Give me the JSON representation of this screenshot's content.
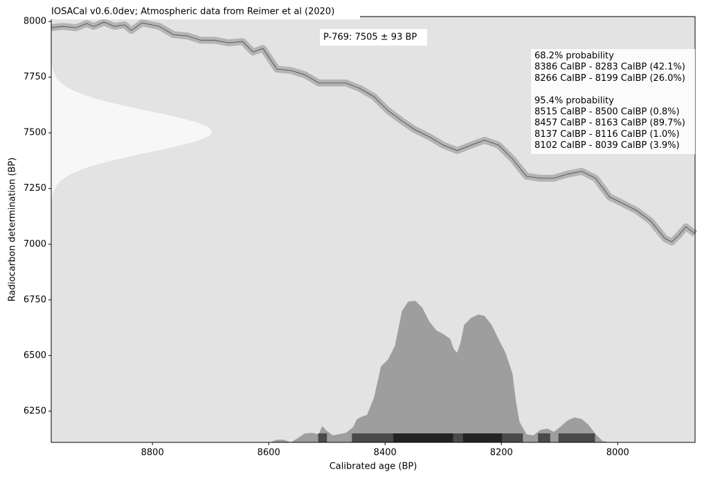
{
  "chart_data": {
    "type": "calibration",
    "title": "IOSACal v0.6.0dev; Atmospheric data from Reimer et al (2020)",
    "x_label": "Calibrated age (BP)",
    "y_label": "Radiocarbon determination (BP)",
    "xlim": [
      8974,
      7867
    ],
    "ylim": [
      6110,
      8022
    ],
    "xticks": [
      8800,
      8600,
      8400,
      8200,
      8000
    ],
    "yticks": [
      6250,
      6500,
      6750,
      7000,
      7250,
      7500,
      7750,
      8000
    ],
    "background": "#e3e3e3",
    "date": {
      "label": "P-769: 7505 ± 93 BP",
      "mean": 7505,
      "sd": 93,
      "color": "#f7f7f7"
    },
    "curve": {
      "color": "#444444",
      "band_color": "#b4b4b4",
      "x": [
        8974,
        8955,
        8931,
        8913,
        8901,
        8883,
        8865,
        8848,
        8836,
        8818,
        8788,
        8764,
        8740,
        8717,
        8693,
        8669,
        8645,
        8627,
        8610,
        8586,
        8562,
        8538,
        8514,
        8491,
        8467,
        8443,
        8419,
        8395,
        8371,
        8348,
        8324,
        8300,
        8276,
        8252,
        8229,
        8205,
        8181,
        8157,
        8133,
        8110,
        8086,
        8062,
        8038,
        8014,
        7990,
        7967,
        7943,
        7919,
        7907,
        7895,
        7883,
        7867
      ],
      "y": [
        7972,
        7978,
        7972,
        7991,
        7978,
        7997,
        7978,
        7985,
        7960,
        7994,
        7978,
        7941,
        7935,
        7916,
        7916,
        7904,
        7910,
        7863,
        7879,
        7786,
        7780,
        7761,
        7724,
        7724,
        7724,
        7699,
        7662,
        7600,
        7553,
        7513,
        7482,
        7445,
        7420,
        7445,
        7467,
        7445,
        7383,
        7305,
        7296,
        7296,
        7315,
        7327,
        7296,
        7212,
        7181,
        7150,
        7103,
        7026,
        7010,
        7041,
        7078,
        7047
      ]
    },
    "density": {
      "color": "#9e9e9e",
      "x": [
        8598,
        8586,
        8574,
        8562,
        8550,
        8538,
        8526,
        8514,
        8508,
        8502,
        8490,
        8479,
        8467,
        8455,
        8449,
        8443,
        8431,
        8419,
        8407,
        8395,
        8383,
        8371,
        8360,
        8348,
        8336,
        8324,
        8312,
        8300,
        8288,
        8282,
        8276,
        8270,
        8264,
        8252,
        8240,
        8229,
        8217,
        8205,
        8193,
        8181,
        8175,
        8169,
        8157,
        8145,
        8133,
        8121,
        8110,
        8098,
        8086,
        8074,
        8062,
        8050,
        8038,
        8026,
        8014
      ],
      "y": [
        6110,
        6122,
        6122,
        6110,
        6129,
        6150,
        6153,
        6147,
        6184,
        6166,
        6141,
        6147,
        6153,
        6178,
        6212,
        6222,
        6234,
        6312,
        6451,
        6482,
        6544,
        6700,
        6743,
        6746,
        6715,
        6653,
        6613,
        6597,
        6575,
        6529,
        6513,
        6560,
        6638,
        6669,
        6684,
        6678,
        6638,
        6575,
        6513,
        6420,
        6296,
        6203,
        6147,
        6141,
        6166,
        6172,
        6157,
        6181,
        6209,
        6222,
        6215,
        6188,
        6147,
        6116,
        6110
      ]
    },
    "probability": [
      {
        "label": "68.2% probability",
        "color": "#232323",
        "ranges": [
          {
            "from": 8386,
            "to": 8283,
            "label": "8386 CalBP - 8283 CalBP (42.1%)"
          },
          {
            "from": 8266,
            "to": 8199,
            "label": "8266 CalBP - 8199 CalBP (26.0%)"
          }
        ]
      },
      {
        "label": "95.4% probability",
        "color": "#4a4a4a",
        "ranges": [
          {
            "from": 8515,
            "to": 8500,
            "label": "8515 CalBP - 8500 CalBP (0.8%)"
          },
          {
            "from": 8457,
            "to": 8163,
            "label": "8457 CalBP - 8163 CalBP (89.7%)"
          },
          {
            "from": 8137,
            "to": 8116,
            "label": "8137 CalBP - 8116 CalBP (1.0%)"
          },
          {
            "from": 8102,
            "to": 8039,
            "label": "8102 CalBP - 8039 CalBP (3.9%)"
          }
        ]
      }
    ]
  }
}
